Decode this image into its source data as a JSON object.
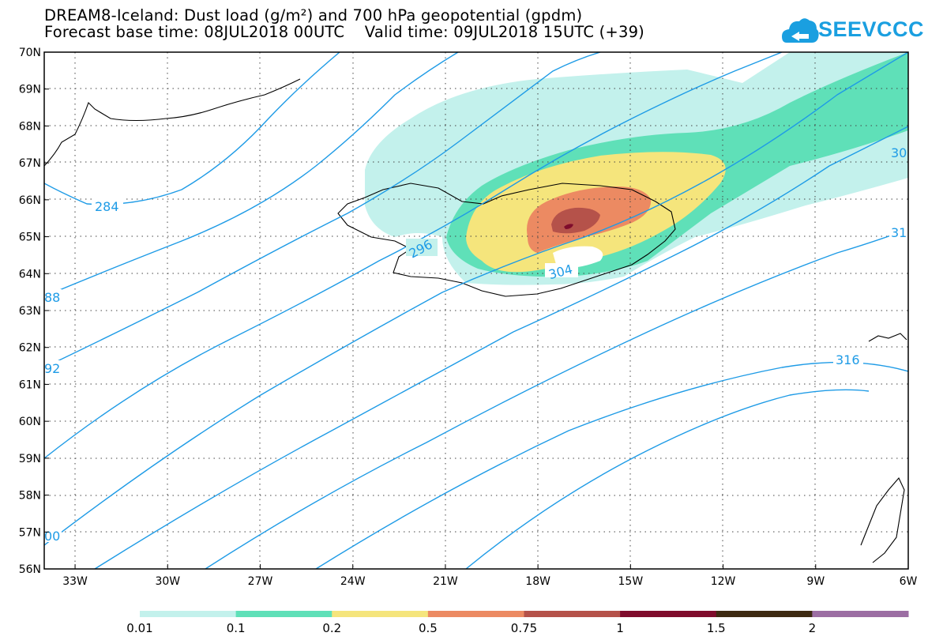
{
  "title_line1": "DREAM8-Iceland: Dust load (g/m²) and 700 hPa geopotential (gpdm)",
  "title_line2": "Forecast base time: 08JUL2018 00UTC    Valid time: 09JUL2018 15UTC (+39)",
  "logo": {
    "text": "SEEVCCC",
    "icon": "cloud-icon",
    "color": "#1a9fe0"
  },
  "map": {
    "lon_range": [
      -34.0,
      -6.0
    ],
    "lat_range": [
      56.0,
      70.0
    ],
    "grid": "dotted",
    "lat_labels": [
      "56N",
      "57N",
      "58N",
      "59N",
      "60N",
      "61N",
      "62N",
      "63N",
      "64N",
      "65N",
      "66N",
      "67N",
      "68N",
      "69N",
      "70N"
    ],
    "lon_labels": [
      "33W",
      "30W",
      "27W",
      "24W",
      "21W",
      "18W",
      "15W",
      "12W",
      "9W",
      "6W"
    ],
    "contour_color": "#1e9be6",
    "contour_labels": [
      {
        "text": "284"
      },
      {
        "text": "296"
      },
      {
        "text": "304"
      },
      {
        "text": "316"
      },
      {
        "text": "88"
      },
      {
        "text": "92"
      },
      {
        "text": "00"
      },
      {
        "text": "30"
      },
      {
        "text": "31"
      }
    ]
  },
  "legend": {
    "thresholds": [
      "0.01",
      "0.1",
      "0.2",
      "0.5",
      "0.75",
      "1",
      "1.5",
      "2"
    ],
    "colors": [
      "#c3f1ec",
      "#5fe0b8",
      "#f5e57c",
      "#ec8a62",
      "#b5524a",
      "#7f0c2c",
      "#3e2a12",
      "#9c6ea3"
    ]
  }
}
